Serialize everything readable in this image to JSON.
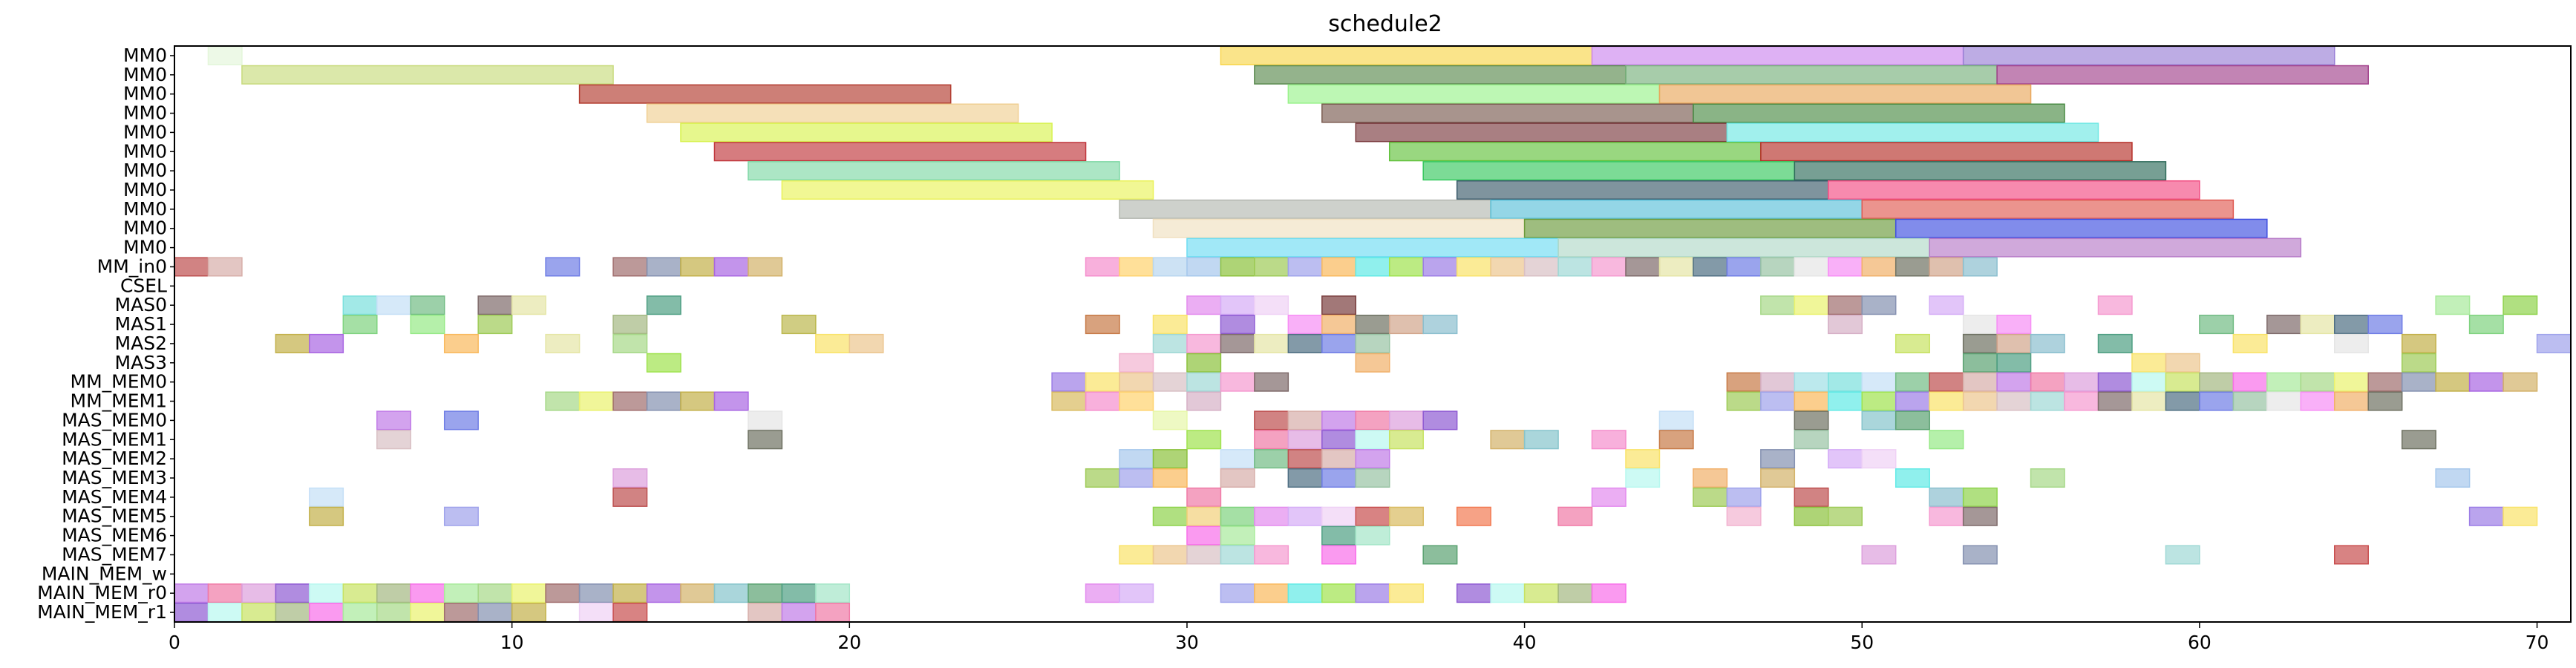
{
  "chart_data": {
    "type": "gantt",
    "title": "schedule2",
    "xlim": [
      0,
      71
    ],
    "xticks": [
      "0",
      "10",
      "20",
      "30",
      "40",
      "50",
      "60",
      "70"
    ],
    "ylabels": [
      "MM0",
      "MM0",
      "MM0",
      "MM0",
      "MM0",
      "MM0",
      "MM0",
      "MM0",
      "MM0",
      "MM0",
      "MM0",
      "MM_in0",
      "CSEL",
      "MAS0",
      "MAS1",
      "MAS2",
      "MAS3",
      "MM_MEM0",
      "MM_MEM1",
      "MAS_MEM0",
      "MAS_MEM1",
      "MAS_MEM2",
      "MAS_MEM3",
      "MAS_MEM4",
      "MAS_MEM5",
      "MAS_MEM6",
      "MAS_MEM7",
      "MAIN_MEM_w",
      "MAIN_MEM_r0",
      "MAIN_MEM_r1"
    ],
    "grid": false,
    "legend": "none",
    "palette": [
      "#a6c8ec",
      "#9fdfe6",
      "#ecc68f",
      "#8f5bd3",
      "#e5e5e5",
      "#8591b1",
      "#e38bee",
      "#96e986",
      "#8cc23c",
      "#7ae0dd",
      "#d9c0c4",
      "#b8f8ef",
      "#f78ef5",
      "#c3b14a",
      "#d5adf7",
      "#d45b4a",
      "#9ecb57",
      "#c5dff7",
      "#9fd8d5",
      "#c7e262",
      "#f1b06a",
      "#a966e2",
      "#efd1f5",
      "#e7f7a9",
      "#9fa3eb",
      "#72bc84",
      "#f59ad0",
      "#a4b882",
      "#6f7263",
      "#d3b26a",
      "#c84e4e",
      "#7a3e3e",
      "#f9b95d",
      "#bd4f4f",
      "#7f6b6b",
      "#f86fe9",
      "#d2a58c",
      "#86c4cc",
      "#d9bb60",
      "#bcb84f",
      "#61eae6",
      "#d7aea9",
      "#e5e6a6",
      "#a8ea9b",
      "#8bbfcf",
      "#5ba272",
      "#f58ecd",
      "#f27a52",
      "#9fe34e",
      "#c17ce7",
      "#4f6f83",
      "#a6d888",
      "#8fd34c",
      "#4f9f83",
      "#ffd36e",
      "#c77a47",
      "#9c7de6",
      "#f07aa6",
      "#6f7de5",
      "#eaf26e",
      "#f2d07a",
      "#a4e6c8",
      "#b8d6ef",
      "#d6b0c6",
      "#f9e36a",
      "#dda0dd",
      "#98c3a4",
      "#a06d6d",
      "#7fd37f",
      "#f2b3d0"
    ],
    "tasks": [
      {
        "row": 0,
        "start": 1,
        "end": 2,
        "color": "#e4f6da"
      },
      {
        "row": 0,
        "start": 31,
        "end": 42,
        "color": "#f8d54b"
      },
      {
        "row": 0,
        "start": 42,
        "end": 53,
        "color": "#cd87ee"
      },
      {
        "row": 0,
        "start": 53,
        "end": 64,
        "color": "#9a7fd6"
      },
      {
        "row": 1,
        "start": 2,
        "end": 13,
        "color": "#c8db7d"
      },
      {
        "row": 1,
        "start": 32,
        "end": 43,
        "color": "#5a8a4f"
      },
      {
        "row": 1,
        "start": 43,
        "end": 54,
        "color": "#78b07c"
      },
      {
        "row": 1,
        "start": 54,
        "end": 65,
        "color": "#a2428c"
      },
      {
        "row": 2,
        "start": 12,
        "end": 23,
        "color": "#b23b2e"
      },
      {
        "row": 2,
        "start": 33,
        "end": 44,
        "color": "#9af28c"
      },
      {
        "row": 2,
        "start": 44,
        "end": 55,
        "color": "#e9a75c"
      },
      {
        "row": 3,
        "start": 14,
        "end": 25,
        "color": "#f0cf92"
      },
      {
        "row": 3,
        "start": 34,
        "end": 45,
        "color": "#7a5a50"
      },
      {
        "row": 3,
        "start": 45,
        "end": 56,
        "color": "#4b8c45"
      },
      {
        "row": 4,
        "start": 15,
        "end": 26,
        "color": "#d8f250"
      },
      {
        "row": 4,
        "start": 35,
        "end": 46,
        "color": "#7b3b3f"
      },
      {
        "row": 4,
        "start": 46,
        "end": 57,
        "color": "#6fe8e4"
      },
      {
        "row": 5,
        "start": 16,
        "end": 27,
        "color": "#c0353b"
      },
      {
        "row": 5,
        "start": 36,
        "end": 47,
        "color": "#62c23c"
      },
      {
        "row": 5,
        "start": 47,
        "end": 58,
        "color": "#b62f28"
      },
      {
        "row": 6,
        "start": 17,
        "end": 28,
        "color": "#7fd8a6"
      },
      {
        "row": 6,
        "start": 37,
        "end": 48,
        "color": "#36c85e"
      },
      {
        "row": 6,
        "start": 48,
        "end": 59,
        "color": "#2e6b5a"
      },
      {
        "row": 7,
        "start": 18,
        "end": 29,
        "color": "#eaf25a"
      },
      {
        "row": 7,
        "start": 38,
        "end": 49,
        "color": "#3a5a6a"
      },
      {
        "row": 7,
        "start": 49,
        "end": 60,
        "color": "#f24c82"
      },
      {
        "row": 8,
        "start": 28,
        "end": 39,
        "color": "#b4b8b0"
      },
      {
        "row": 8,
        "start": 39,
        "end": 50,
        "color": "#5ac0d8"
      },
      {
        "row": 8,
        "start": 50,
        "end": 61,
        "color": "#e05a52"
      },
      {
        "row": 9,
        "start": 29,
        "end": 40,
        "color": "#f0e0c0"
      },
      {
        "row": 9,
        "start": 40,
        "end": 51,
        "color": "#6a9a3a"
      },
      {
        "row": 9,
        "start": 51,
        "end": 62,
        "color": "#3e4ee0"
      },
      {
        "row": 10,
        "start": 30,
        "end": 41,
        "color": "#6edcf2"
      },
      {
        "row": 10,
        "start": 41,
        "end": 52,
        "color": "#b0d8c8"
      },
      {
        "row": 10,
        "start": 52,
        "end": 63,
        "color": "#b77bc8"
      }
    ],
    "cell_rows": [
      {
        "row": 11,
        "cells": [
          0,
          1,
          11,
          13,
          14,
          15,
          16,
          17,
          27,
          28,
          29,
          30,
          31,
          32,
          33,
          34,
          35,
          36,
          37,
          38,
          39,
          40,
          41,
          42,
          43,
          44,
          45,
          46,
          47,
          48,
          49,
          50,
          51,
          52,
          53
        ]
      },
      {
        "row": 12,
        "cells": []
      },
      {
        "row": 13,
        "cells": [
          5,
          6,
          7,
          9,
          10,
          14,
          30,
          31,
          32,
          34,
          47,
          48,
          49,
          50,
          52,
          57,
          67,
          69
        ]
      },
      {
        "row": 14,
        "cells": [
          5,
          7,
          9,
          13,
          18,
          27,
          29,
          31,
          33,
          34,
          35,
          36,
          37,
          49,
          53,
          54,
          60,
          62,
          63,
          64,
          65,
          68
        ]
      },
      {
        "row": 15,
        "cells": [
          3,
          4,
          8,
          11,
          13,
          19,
          20,
          29,
          30,
          31,
          32,
          33,
          34,
          35,
          51,
          53,
          54,
          55,
          57,
          61,
          64,
          66,
          70
        ]
      },
      {
        "row": 16,
        "cells": [
          14,
          28,
          30,
          35,
          53,
          54,
          58,
          59,
          66
        ]
      },
      {
        "row": 17,
        "cells": [
          26,
          27,
          28,
          29,
          30,
          31,
          32,
          46,
          47,
          48,
          49,
          50,
          51,
          52,
          53,
          54,
          55,
          56,
          57,
          58,
          59,
          60,
          61,
          62,
          63,
          64,
          65,
          66,
          67,
          68,
          69
        ]
      },
      {
        "row": 18,
        "cells": [
          11,
          12,
          13,
          14,
          15,
          16,
          26,
          27,
          28,
          30,
          46,
          47,
          48,
          49,
          50,
          51,
          52,
          53,
          54,
          55,
          56,
          57,
          58,
          59,
          60,
          61,
          62,
          63,
          64,
          65
        ]
      },
      {
        "row": 19,
        "cells": [
          6,
          8,
          17,
          29,
          32,
          33,
          34,
          35,
          36,
          37,
          44,
          48,
          50,
          51
        ]
      },
      {
        "row": 20,
        "cells": [
          6,
          17,
          30,
          32,
          33,
          34,
          35,
          36,
          39,
          40,
          42,
          44,
          48,
          52,
          66
        ]
      },
      {
        "row": 21,
        "cells": [
          28,
          29,
          31,
          32,
          33,
          34,
          35,
          43,
          47,
          49,
          50
        ]
      },
      {
        "row": 22,
        "cells": [
          13,
          27,
          28,
          29,
          31,
          33,
          34,
          35,
          43,
          45,
          47,
          51,
          55,
          67
        ]
      },
      {
        "row": 23,
        "cells": [
          4,
          13,
          30,
          42,
          45,
          46,
          48,
          52,
          53
        ]
      },
      {
        "row": 24,
        "cells": [
          4,
          8,
          29,
          30,
          31,
          32,
          33,
          34,
          35,
          36,
          38,
          41,
          46,
          48,
          49,
          52,
          53,
          68,
          69
        ]
      },
      {
        "row": 25,
        "cells": [
          30,
          31,
          34,
          35
        ]
      },
      {
        "row": 26,
        "cells": [
          28,
          29,
          30,
          31,
          32,
          34,
          37,
          50,
          53,
          59,
          64
        ]
      },
      {
        "row": 27,
        "cells": []
      },
      {
        "row": 28,
        "cells": [
          0,
          1,
          2,
          3,
          4,
          5,
          6,
          7,
          8,
          9,
          10,
          11,
          12,
          13,
          14,
          15,
          16,
          17,
          18,
          19,
          27,
          28,
          31,
          32,
          33,
          34,
          35,
          36,
          38,
          39,
          40,
          41,
          42
        ]
      },
      {
        "row": 29,
        "cells": [
          0,
          1,
          2,
          3,
          4,
          5,
          6,
          7,
          8,
          9,
          10,
          12,
          13,
          17,
          18,
          19
        ]
      }
    ]
  }
}
